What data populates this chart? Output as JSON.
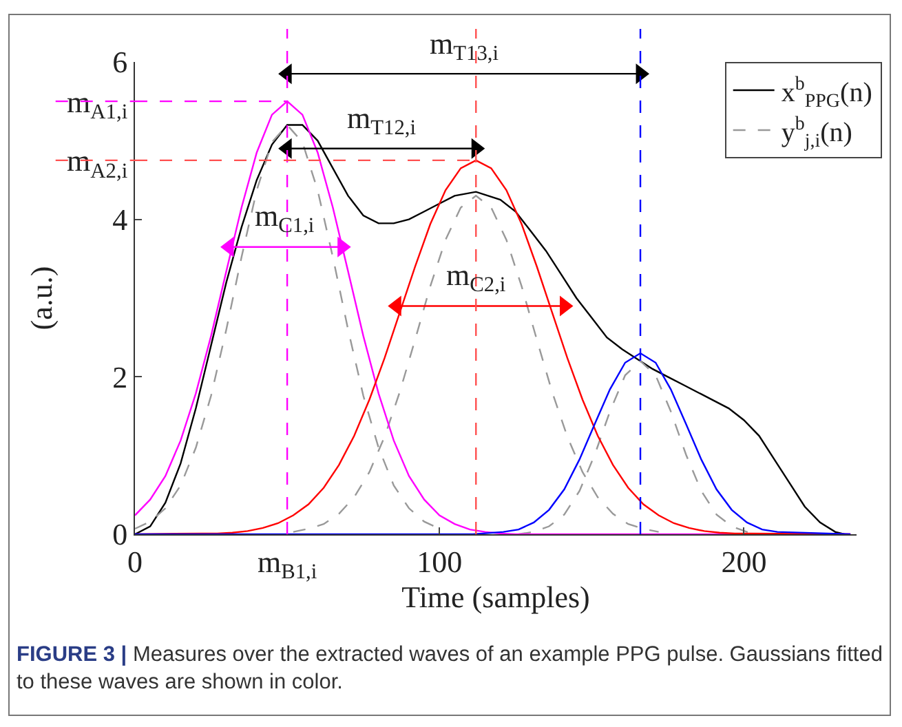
{
  "chart_data": {
    "type": "line",
    "xlabel": "Time (samples)",
    "ylabel": "(a.u.)",
    "xlim": [
      0,
      237
    ],
    "ylim": [
      0,
      6
    ],
    "xticks": [
      0,
      {
        "value": 50,
        "label": "m$_{B1,i}$"
      },
      100,
      200
    ],
    "yticks": [
      0,
      2,
      4,
      {
        "value": 4.75,
        "label": "m$_{A2,i}$"
      },
      {
        "value": 5.5,
        "label": "m$_{A1,i}$"
      },
      6
    ],
    "grid": false,
    "legend": "top right",
    "marker": "none",
    "series": [
      {
        "name": "x$^{b}$$_{PPG}$(n)",
        "color": "#000000",
        "line_style": "solid",
        "x": [
          0,
          5,
          10,
          15,
          20,
          25,
          30,
          35,
          40,
          45,
          50,
          55,
          60,
          65,
          70,
          75,
          80,
          85,
          90,
          95,
          100,
          105,
          112,
          120,
          125,
          130,
          135,
          140,
          145,
          150,
          155,
          160,
          166,
          170,
          175,
          180,
          185,
          190,
          195,
          200,
          205,
          210,
          215,
          220,
          225,
          230,
          233
        ],
        "values": [
          0,
          0.1,
          0.4,
          0.9,
          1.6,
          2.4,
          3.2,
          3.9,
          4.5,
          4.95,
          5.2,
          5.2,
          5.0,
          4.65,
          4.3,
          4.05,
          3.95,
          3.95,
          4.0,
          4.1,
          4.2,
          4.3,
          4.35,
          4.25,
          4.1,
          3.85,
          3.6,
          3.3,
          3.0,
          2.75,
          2.5,
          2.35,
          2.2,
          2.1,
          2.0,
          1.9,
          1.8,
          1.7,
          1.6,
          1.45,
          1.25,
          0.95,
          0.65,
          0.35,
          0.15,
          0.03,
          0
        ]
      },
      {
        "name": "y$^{b}$$_{j,i}$(n)",
        "color": "#999999",
        "line_style": "dashed",
        "x": [
          0,
          5,
          10,
          15,
          20,
          25,
          30,
          35,
          40,
          45,
          50,
          55,
          60,
          65,
          70,
          75,
          80,
          85,
          90,
          95,
          100
        ],
        "values": [
          0.07,
          0.16,
          0.33,
          0.62,
          1.1,
          1.76,
          2.6,
          3.52,
          4.37,
          4.98,
          5.2,
          4.98,
          4.37,
          3.52,
          2.6,
          1.76,
          1.1,
          0.62,
          0.33,
          0.16,
          0.07
        ]
      },
      {
        "color": "#999999",
        "line_style": "dashed",
        "x": [
          52,
          57,
          62,
          67,
          72,
          77,
          82,
          87,
          92,
          97,
          102,
          107,
          112,
          117,
          122,
          127,
          132,
          137,
          142,
          147,
          152,
          157,
          162,
          167,
          172
        ],
        "values": [
          0.03,
          0.07,
          0.13,
          0.26,
          0.47,
          0.79,
          1.24,
          1.81,
          2.47,
          3.15,
          3.74,
          4.15,
          4.3,
          4.15,
          3.74,
          3.15,
          2.47,
          1.81,
          1.24,
          0.79,
          0.47,
          0.26,
          0.13,
          0.07,
          0.03
        ]
      },
      {
        "color": "#999999",
        "line_style": "dashed",
        "x": [
          126,
          131,
          136,
          141,
          146,
          151,
          156,
          161,
          166,
          171,
          176,
          181,
          186,
          191,
          196,
          201,
          206
        ],
        "values": [
          0,
          0.03,
          0.1,
          0.25,
          0.55,
          1.01,
          1.56,
          2.02,
          2.2,
          2.02,
          1.56,
          1.01,
          0.55,
          0.25,
          0.1,
          0.03,
          0
        ]
      },
      {
        "color": "#ff00ff",
        "line_style": "solid",
        "x": [
          0,
          5,
          10,
          15,
          20,
          25,
          30,
          35,
          40,
          45,
          50,
          55,
          60,
          65,
          70,
          75,
          80,
          85,
          90,
          95,
          100,
          105,
          110,
          115,
          120,
          125,
          235
        ],
        "values": [
          0.24,
          0.44,
          0.74,
          1.19,
          1.79,
          2.52,
          3.34,
          4.15,
          4.85,
          5.33,
          5.5,
          5.33,
          4.85,
          4.15,
          3.34,
          2.52,
          1.79,
          1.19,
          0.74,
          0.44,
          0.24,
          0.13,
          0.06,
          0.03,
          0.01,
          0,
          0
        ]
      },
      {
        "color": "#ff0000",
        "line_style": "solid",
        "x": [
          0,
          22,
          27,
          32,
          37,
          42,
          47,
          52,
          57,
          62,
          67,
          72,
          77,
          82,
          87,
          92,
          97,
          102,
          107,
          112,
          117,
          122,
          127,
          132,
          137,
          142,
          147,
          152,
          157,
          162,
          167,
          172,
          177,
          182,
          187,
          192,
          197,
          202,
          235
        ],
        "values": [
          0,
          0.01,
          0.01,
          0.02,
          0.04,
          0.08,
          0.14,
          0.24,
          0.38,
          0.59,
          0.88,
          1.25,
          1.71,
          2.24,
          2.82,
          3.4,
          3.94,
          4.37,
          4.65,
          4.75,
          4.65,
          4.37,
          3.94,
          3.4,
          2.82,
          2.24,
          1.71,
          1.25,
          0.88,
          0.59,
          0.38,
          0.24,
          0.14,
          0.08,
          0.04,
          0.02,
          0.01,
          0.01,
          0
        ]
      },
      {
        "color": "#0000ff",
        "line_style": "solid",
        "x": [
          0,
          111,
          121,
          126,
          131,
          136,
          141,
          146,
          151,
          156,
          161,
          166,
          171,
          176,
          181,
          186,
          191,
          196,
          201,
          206,
          211,
          235
        ],
        "values": [
          0,
          0,
          0.03,
          0.06,
          0.15,
          0.31,
          0.57,
          0.95,
          1.4,
          1.84,
          2.18,
          2.3,
          2.18,
          1.84,
          1.4,
          0.95,
          0.57,
          0.31,
          0.15,
          0.06,
          0.03,
          0
        ]
      },
      {
        "type": "line",
        "marker": "triangle",
        "color": "#000000",
        "line_style": "solid",
        "x": [
          50,
          166
        ],
        "values": [
          5.85,
          5.85
        ]
      },
      {
        "type": "line",
        "marker": "triangle",
        "color": "#000000",
        "line_style": "solid",
        "x": [
          50,
          112
        ],
        "values": [
          4.9,
          4.9
        ]
      },
      {
        "type": "line",
        "marker": "triangle",
        "color": "#ff00ff",
        "line_style": "solid",
        "x": [
          31,
          68
        ],
        "values": [
          3.65,
          3.65
        ]
      },
      {
        "type": "line",
        "marker": "triangle",
        "color": "#ff0000",
        "line_style": "solid",
        "x": [
          86,
          141
        ],
        "values": [
          2.9,
          2.9
        ]
      }
    ],
    "ref_lines": [
      {
        "axis": "x",
        "value": 50,
        "color": "#ff00ff",
        "line_style": "dashed"
      },
      {
        "axis": "x",
        "value": 112,
        "color": "#ff5050",
        "line_style": "dashed"
      },
      {
        "axis": "x",
        "value": 166,
        "color": "#0000ff",
        "line_style": "dashed"
      },
      {
        "axis": "y",
        "value": 5.5,
        "color": "#ff00ff",
        "line_style": "dashed"
      },
      {
        "axis": "y",
        "value": 4.75,
        "color": "#ff5050",
        "line_style": "dashed"
      }
    ],
    "annotations": [
      {
        "text": "m$_{T13,i}$",
        "x": 108,
        "y": 5.85
      },
      {
        "text": "m$_{T12,i}$",
        "x": 81,
        "y": 4.9
      },
      {
        "text": "m$_{C1,i}$",
        "x": 49,
        "y": 3.65
      },
      {
        "text": "m$_{C2,i}$",
        "x": 112,
        "y": 2.9
      },
      "FIGURE 3 | Measures over the extracted waves of an example PPG pulse. Gaussians fitted to these waves are shown in color."
    ]
  }
}
